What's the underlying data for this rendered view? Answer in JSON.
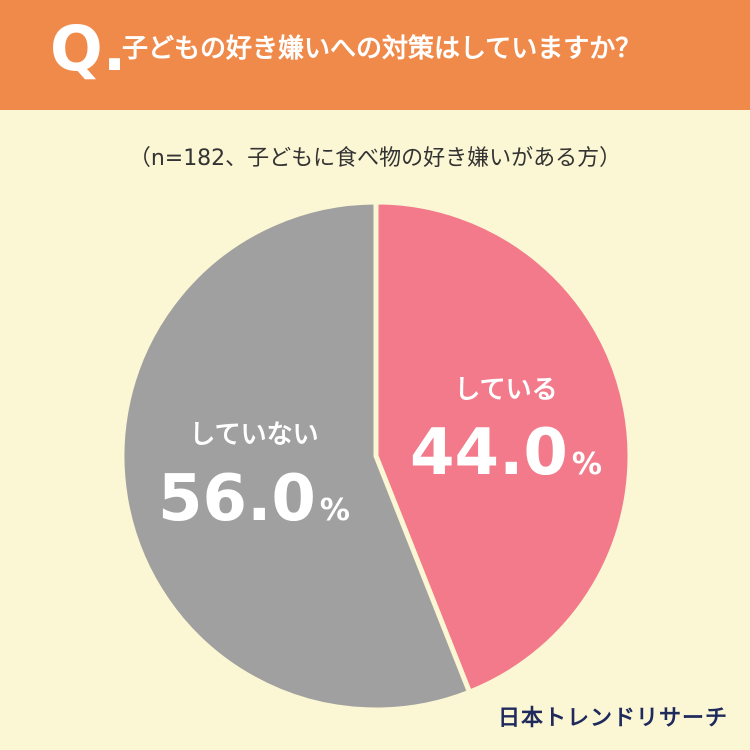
{
  "header": {
    "q_mark": "Q.",
    "question": "子どもの好き嫌いへの対策はしていますか？"
  },
  "subtitle": "（n=182、子どもに食べ物の好き嫌いがある方）",
  "brand": "日本トレンドリサーチ",
  "colors": {
    "header_bg": "#f08a4b",
    "background": "#fbf6d3",
    "yes": "#f27a8a",
    "no": "#a0a0a0",
    "brand": "#1f2a5c"
  },
  "chart_data": {
    "type": "pie",
    "n": 182,
    "start": "12 o'clock, clockwise",
    "slices": [
      {
        "label": "している",
        "value": 44.0,
        "display": "44.0",
        "unit": "%",
        "color": "#f27a8a"
      },
      {
        "label": "していない",
        "value": 56.0,
        "display": "56.0",
        "unit": "%",
        "color": "#a0a0a0"
      }
    ]
  }
}
